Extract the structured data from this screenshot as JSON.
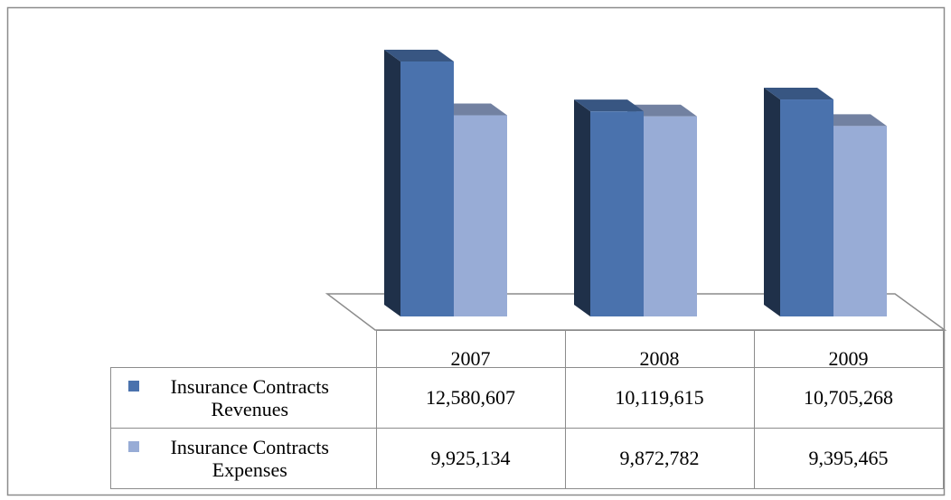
{
  "chart_data": {
    "type": "bar",
    "categories": [
      "2007",
      "2008",
      "2009"
    ],
    "series": [
      {
        "name": "Insurance Contracts Revenues",
        "color": "#4a72ad",
        "values": [
          12580607,
          10119615,
          10705268
        ],
        "value_labels": [
          "12,580,607",
          "10,119,615",
          "10,705,268"
        ]
      },
      {
        "name": "Insurance Contracts Expenses",
        "color": "#98acd6",
        "values": [
          9925134,
          9872782,
          9395465
        ],
        "value_labels": [
          "9,925,134",
          "9,872,782",
          "9,395,465"
        ]
      }
    ]
  }
}
